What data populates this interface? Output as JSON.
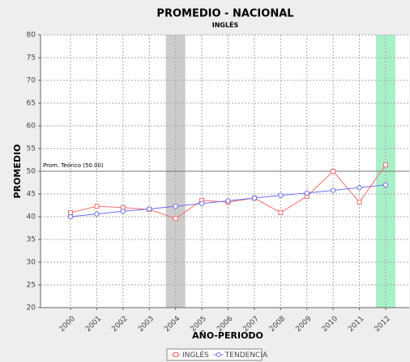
{
  "chart_data": {
    "type": "line",
    "title": "PROMEDIO - NACIONAL",
    "subtitle": "INGLÉS",
    "y_label": "PROMEDIO",
    "x_label": "AÑO-PERIODO",
    "categories": [
      "2000",
      "2001",
      "2002",
      "2003",
      "2004",
      "2005",
      "2006",
      "2007",
      "2008",
      "2009",
      "2010",
      "2011",
      "2012"
    ],
    "series": [
      {
        "name": "INGLÉS",
        "color": "#f07070",
        "marker": "square",
        "values": [
          40.9,
          42.3,
          42.0,
          41.6,
          39.6,
          43.6,
          43.2,
          44.1,
          40.9,
          44.5,
          50.0,
          43.2,
          51.4
        ]
      },
      {
        "name": "TENDENCIA",
        "color": "#7070f0",
        "marker": "circle",
        "values": [
          40.0,
          40.6,
          41.2,
          41.7,
          42.3,
          42.9,
          43.5,
          44.1,
          44.7,
          45.2,
          45.8,
          46.4,
          47.0
        ]
      }
    ],
    "reference": {
      "value": 50,
      "label": "Prom. Teórico (50.00)"
    },
    "highlights": [
      {
        "category": "2004",
        "color": "#cccccc"
      },
      {
        "category": "2012",
        "color": "#a8f0c8"
      }
    ],
    "ylim": [
      20,
      80
    ],
    "yticks": [
      20,
      25,
      30,
      35,
      40,
      45,
      50,
      55,
      60,
      65,
      70,
      75,
      80
    ],
    "grid": true,
    "legend": "bottom"
  }
}
